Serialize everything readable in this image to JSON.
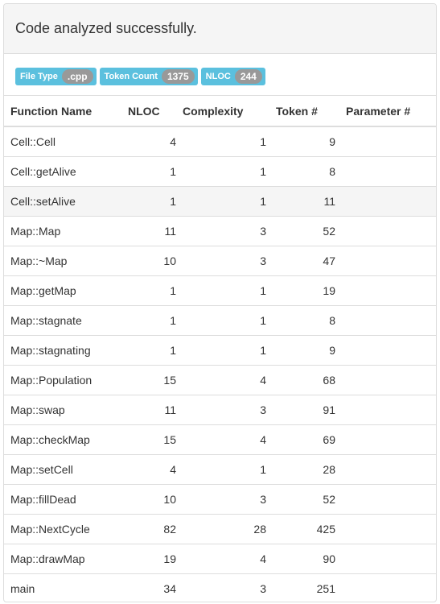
{
  "header": {
    "title": "Code analyzed successfully."
  },
  "badges": [
    {
      "label": "File Type",
      "value": ".cpp"
    },
    {
      "label": "Token Count",
      "value": "1375"
    },
    {
      "label": "NLOC",
      "value": "244"
    }
  ],
  "table": {
    "columns": [
      "Function Name",
      "NLOC",
      "Complexity",
      "Token #",
      "Parameter #"
    ],
    "rows": [
      {
        "name": "Cell::Cell",
        "nloc": "4",
        "complexity": "1",
        "tokens": "9",
        "params": ""
      },
      {
        "name": "Cell::getAlive",
        "nloc": "1",
        "complexity": "1",
        "tokens": "8",
        "params": ""
      },
      {
        "name": "Cell::setAlive",
        "nloc": "1",
        "complexity": "1",
        "tokens": "11",
        "params": ""
      },
      {
        "name": "Map::Map",
        "nloc": "11",
        "complexity": "3",
        "tokens": "52",
        "params": ""
      },
      {
        "name": "Map::~Map",
        "nloc": "10",
        "complexity": "3",
        "tokens": "47",
        "params": ""
      },
      {
        "name": "Map::getMap",
        "nloc": "1",
        "complexity": "1",
        "tokens": "19",
        "params": ""
      },
      {
        "name": "Map::stagnate",
        "nloc": "1",
        "complexity": "1",
        "tokens": "8",
        "params": ""
      },
      {
        "name": "Map::stagnating",
        "nloc": "1",
        "complexity": "1",
        "tokens": "9",
        "params": ""
      },
      {
        "name": "Map::Population",
        "nloc": "15",
        "complexity": "4",
        "tokens": "68",
        "params": ""
      },
      {
        "name": "Map::swap",
        "nloc": "11",
        "complexity": "3",
        "tokens": "91",
        "params": ""
      },
      {
        "name": "Map::checkMap",
        "nloc": "15",
        "complexity": "4",
        "tokens": "69",
        "params": ""
      },
      {
        "name": "Map::setCell",
        "nloc": "4",
        "complexity": "1",
        "tokens": "28",
        "params": ""
      },
      {
        "name": "Map::fillDead",
        "nloc": "10",
        "complexity": "3",
        "tokens": "52",
        "params": ""
      },
      {
        "name": "Map::NextCycle",
        "nloc": "82",
        "complexity": "28",
        "tokens": "425",
        "params": ""
      },
      {
        "name": "Map::drawMap",
        "nloc": "19",
        "complexity": "4",
        "tokens": "90",
        "params": ""
      },
      {
        "name": "main",
        "nloc": "34",
        "complexity": "3",
        "tokens": "251",
        "params": ""
      }
    ],
    "hovered_row": 2
  },
  "colors": {
    "label_bg": "#5bc0de",
    "badge_bg": "#999999",
    "heading_bg": "#f5f5f5",
    "border": "#dddddd"
  }
}
